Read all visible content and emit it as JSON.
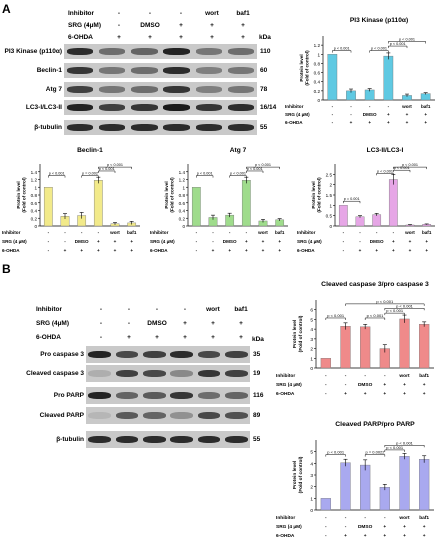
{
  "panel_a": {
    "letter": "A",
    "headers": {
      "inhibitor_label": "Inhibitor",
      "srg_label": "SRG (4µM)",
      "ohda_label": "6-OHDA",
      "inhibitor": [
        "-",
        "-",
        "-",
        "-",
        "wort",
        "baf1"
      ],
      "srg": [
        "-",
        "-",
        "DMSO",
        "+",
        "+",
        "+"
      ],
      "ohda": [
        "-",
        "+",
        "+",
        "+",
        "+",
        "+"
      ],
      "kda": "kDa"
    },
    "blot_rows": [
      {
        "label": "PI3 Kinase (p110α)",
        "kda": "110"
      },
      {
        "label": "Beclin-1",
        "kda": "60"
      },
      {
        "label": "Atg 7",
        "kda": "78"
      },
      {
        "label": "LC3-I/LC3-II",
        "kda": "16/14"
      },
      {
        "label": "β-tubulin",
        "kda": "55"
      }
    ]
  },
  "panel_b": {
    "letter": "B",
    "headers": {
      "inhibitor_label": "Inhibitor",
      "srg_label": "SRG (4µM)",
      "ohda_label": "6-OHDA",
      "inhibitor": [
        "-",
        "-",
        "-",
        "-",
        "wort",
        "baf1"
      ],
      "srg": [
        "-",
        "-",
        "DMSO",
        "+",
        "+",
        "+"
      ],
      "ohda": [
        "-",
        "+",
        "+",
        "+",
        "+",
        "+"
      ],
      "kda": "kDa"
    },
    "blot_rows": [
      {
        "label": "Pro caspase 3",
        "kda": "35"
      },
      {
        "label": "Cleaved caspase 3",
        "kda": "19"
      },
      {
        "label": "Pro PARP",
        "kda": "116"
      },
      {
        "label": "Cleaved PARP",
        "kda": "89"
      },
      {
        "label": "β-tubulin",
        "kda": "55"
      }
    ]
  },
  "chart_data": [
    {
      "id": "pi3k",
      "type": "bar",
      "title": "PI3 Kinase (p110α)",
      "ylabel": "Protein level\n(Fold of control)",
      "ylim": [
        0,
        1.4
      ],
      "yticks": [
        0,
        0.2,
        0.4,
        0.6,
        0.8,
        1,
        1.2
      ],
      "values": [
        1.0,
        0.2,
        0.22,
        0.96,
        0.1,
        0.14
      ],
      "errors": [
        0.0,
        0.04,
        0.03,
        0.07,
        0.03,
        0.02
      ],
      "color": "#5fc9e2",
      "row_labels": [
        "Inhibitor",
        "SRG (4 µM)",
        "6-OHDA"
      ],
      "rows": [
        [
          "-",
          "-",
          "-",
          "-",
          "wort",
          "baf1"
        ],
        [
          "-",
          "-",
          "DMSO",
          "+",
          "+",
          "+"
        ],
        [
          "-",
          "+",
          "+",
          "+",
          "+",
          "+"
        ]
      ],
      "annotations": [
        {
          "from": 0,
          "to": 1,
          "level": 1.08,
          "text": "p < 0.001"
        },
        {
          "from": 2,
          "to": 3,
          "level": 1.08,
          "text": "p < 0.001"
        },
        {
          "from": 3,
          "to": 4,
          "level": 1.18,
          "text": "p < 0.001"
        },
        {
          "from": 3,
          "to": 5,
          "level": 1.28,
          "text": "p < 0.001"
        }
      ]
    },
    {
      "id": "beclin",
      "type": "bar",
      "title": "Beclin-1",
      "ylabel": "Protein level\n(Fold of control)",
      "ylim": [
        0,
        1.6
      ],
      "yticks": [
        0,
        0.2,
        0.4,
        0.6,
        0.8,
        1,
        1.2,
        1.4
      ],
      "values": [
        1.0,
        0.25,
        0.27,
        1.18,
        0.06,
        0.08
      ],
      "errors": [
        0.0,
        0.07,
        0.08,
        0.08,
        0.03,
        0.04
      ],
      "color": "#f2ea8a",
      "row_labels": [
        "Inhibitor",
        "SRG (4 µM)",
        "6-OHDA"
      ],
      "rows": [
        [
          "-",
          "-",
          "-",
          "-",
          "wort",
          "baf1"
        ],
        [
          "-",
          "-",
          "DMSO",
          "+",
          "+",
          "+"
        ],
        [
          "-",
          "+",
          "+",
          "+",
          "+",
          "+"
        ]
      ],
      "annotations": [
        {
          "from": 0,
          "to": 1,
          "level": 1.3,
          "text": "p < 0.001"
        },
        {
          "from": 2,
          "to": 3,
          "level": 1.3,
          "text": "p = 0.002"
        },
        {
          "from": 3,
          "to": 4,
          "level": 1.42,
          "text": "p < 0.001"
        },
        {
          "from": 3,
          "to": 5,
          "level": 1.52,
          "text": "p < 0.001"
        }
      ]
    },
    {
      "id": "atg7",
      "type": "bar",
      "title": "Atg 7",
      "ylabel": "Protein level\n(Fold of control)",
      "ylim": [
        0,
        1.6
      ],
      "yticks": [
        0,
        0.2,
        0.4,
        0.6,
        0.8,
        1,
        1.2,
        1.4
      ],
      "values": [
        1.0,
        0.22,
        0.28,
        1.18,
        0.13,
        0.16
      ],
      "errors": [
        0.0,
        0.06,
        0.05,
        0.08,
        0.04,
        0.03
      ],
      "color": "#9fdc8c",
      "row_labels": [
        "Inhibitor",
        "SRG (4 µM)",
        "6-OHDA"
      ],
      "rows": [
        [
          "-",
          "-",
          "-",
          "-",
          "wort",
          "baf1"
        ],
        [
          "-",
          "-",
          "DMSO",
          "+",
          "+",
          "+"
        ],
        [
          "-",
          "+",
          "+",
          "+",
          "+",
          "+"
        ]
      ],
      "annotations": [
        {
          "from": 0,
          "to": 1,
          "level": 1.3,
          "text": "p < 0.001"
        },
        {
          "from": 2,
          "to": 3,
          "level": 1.3,
          "text": "p < 0.001"
        },
        {
          "from": 3,
          "to": 4,
          "level": 1.42,
          "text": "p < 0.001"
        },
        {
          "from": 3,
          "to": 5,
          "level": 1.52,
          "text": "p < 0.001"
        }
      ]
    },
    {
      "id": "lc3",
      "type": "bar",
      "title": "LC3-II/LC3-I",
      "ylabel": "Protein level\n(Fold of control)",
      "ylim": [
        0,
        3
      ],
      "yticks": [
        0,
        0.5,
        1,
        1.5,
        2,
        2.5
      ],
      "values": [
        1.0,
        0.45,
        0.55,
        2.25,
        0.05,
        0.08
      ],
      "errors": [
        0.0,
        0.05,
        0.06,
        0.25,
        0.02,
        0.02
      ],
      "color": "#e6a6e6",
      "row_labels": [
        "Inhibitor",
        "SRG (4 µM)",
        "6-OHDA"
      ],
      "rows": [
        [
          "-",
          "-",
          "-",
          "-",
          "wort",
          "baf1"
        ],
        [
          "-",
          "-",
          "DMSO",
          "+",
          "+",
          "+"
        ],
        [
          "-",
          "+",
          "+",
          "+",
          "+",
          "+"
        ]
      ],
      "annotations": [
        {
          "from": 0,
          "to": 1,
          "level": 1.2,
          "text": "p = 0.001"
        },
        {
          "from": 2,
          "to": 3,
          "level": 2.55,
          "text": "p < 0.001"
        },
        {
          "from": 3,
          "to": 4,
          "level": 2.7,
          "text": "p < 0.001"
        },
        {
          "from": 3,
          "to": 5,
          "level": 2.85,
          "text": "p < 0.001"
        }
      ]
    },
    {
      "id": "caspase",
      "type": "bar",
      "title": "Cleaved caspase 3/pro caspase 3",
      "ylabel": "Protein level\n(Fold of control)",
      "ylim": [
        0,
        7
      ],
      "yticks": [
        0,
        1,
        2,
        3,
        4,
        5,
        6
      ],
      "values": [
        1.0,
        4.3,
        4.25,
        2.0,
        5.05,
        4.5
      ],
      "errors": [
        0.0,
        0.35,
        0.25,
        0.4,
        0.4,
        0.25
      ],
      "color": "#ef8a8a",
      "row_labels": [
        "Inhibitor",
        "SRG (4 µM)",
        "6-OHDA"
      ],
      "rows": [
        [
          "-",
          "-",
          "-",
          "-",
          "wort",
          "baf1"
        ],
        [
          "-",
          "-",
          "DMSO",
          "+",
          "+",
          "+"
        ],
        [
          "-",
          "+",
          "+",
          "+",
          "+",
          "+"
        ]
      ],
      "annotations": [
        {
          "from": 0,
          "to": 1,
          "level": 5.15,
          "text": "p < 0.001"
        },
        {
          "from": 2,
          "to": 3,
          "level": 5.15,
          "text": "p < 0.001"
        },
        {
          "from": 3,
          "to": 4,
          "level": 5.65,
          "text": "p < 0.001"
        },
        {
          "from": 3,
          "to": 5,
          "level": 6.15,
          "text": "p < 0.001"
        },
        {
          "from": 1,
          "to": 5,
          "level": 6.6,
          "text": "p < 0.001"
        }
      ]
    },
    {
      "id": "parp",
      "type": "bar",
      "title": "Cleaved PARP/pro PARP",
      "ylabel": "Protein level\n(Fold of control)",
      "ylim": [
        0,
        6
      ],
      "yticks": [
        0,
        1,
        2,
        3,
        4,
        5
      ],
      "values": [
        1.0,
        4.05,
        3.85,
        1.95,
        4.6,
        4.35
      ],
      "errors": [
        0.0,
        0.3,
        0.45,
        0.25,
        0.25,
        0.3
      ],
      "color": "#a9a9ef",
      "row_labels": [
        "Inhibitor",
        "SRG (4 µM)",
        "6-OHDA"
      ],
      "rows": [
        [
          "-",
          "-",
          "-",
          "-",
          "wort",
          "baf1"
        ],
        [
          "-",
          "-",
          "DMSO",
          "+",
          "+",
          "+"
        ],
        [
          "-",
          "+",
          "+",
          "+",
          "+",
          "+"
        ]
      ],
      "annotations": [
        {
          "from": 0,
          "to": 1,
          "level": 4.75,
          "text": "p < 0.001"
        },
        {
          "from": 2,
          "to": 3,
          "level": 4.75,
          "text": "p = 0.0022"
        },
        {
          "from": 3,
          "to": 4,
          "level": 5.15,
          "text": "p < 0.001"
        },
        {
          "from": 3,
          "to": 5,
          "level": 5.55,
          "text": "p < 0.001"
        }
      ]
    }
  ]
}
